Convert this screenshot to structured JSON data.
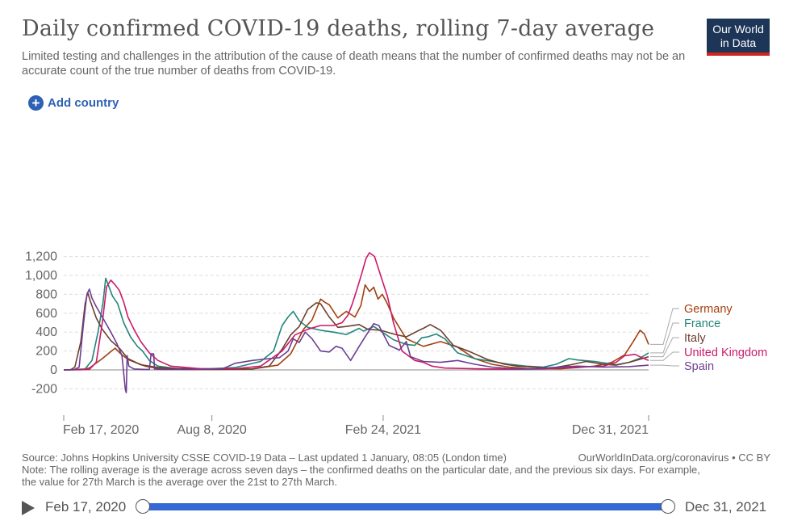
{
  "header": {
    "title": "Daily confirmed COVID-19 deaths, rolling 7-day average",
    "subtitle": "Limited testing and challenges in the attribution of the cause of death means that the number of confirmed deaths may not be an accurate count of the true number of deaths from COVID-19.",
    "logo_line1": "Our World",
    "logo_line2": "in Data"
  },
  "controls": {
    "add_country": "Add country"
  },
  "colors": {
    "Germany": "#a2400f",
    "France": "#21867b",
    "Italy": "#6d3e30",
    "United Kingdom": "#cb1a6a",
    "Spain": "#6d3e91"
  },
  "chart_data": {
    "type": "line",
    "title": "Daily confirmed COVID-19 deaths, rolling 7-day average",
    "xlabel": "",
    "ylabel": "",
    "ylim": [
      -250,
      1300
    ],
    "yticks": [
      -200,
      0,
      200,
      400,
      600,
      800,
      1000,
      1200
    ],
    "ytick_labels": [
      "-200",
      "0",
      "200",
      "400",
      "600",
      "800",
      "1,000",
      "1,200"
    ],
    "x_start": "2020-02-17",
    "x_end": "2021-12-31",
    "xticks": [
      {
        "day": 0,
        "label": "Feb 17, 2020"
      },
      {
        "day": 173,
        "label": "Aug 8, 2020"
      },
      {
        "day": 373,
        "label": "Feb 24, 2021"
      },
      {
        "day": 683,
        "label": "Dec 31, 2021"
      }
    ],
    "series": [
      {
        "name": "Germany",
        "points": [
          [
            0,
            0
          ],
          [
            20,
            2
          ],
          [
            30,
            20
          ],
          [
            45,
            120
          ],
          [
            55,
            195
          ],
          [
            60,
            230
          ],
          [
            66,
            175
          ],
          [
            75,
            110
          ],
          [
            85,
            75
          ],
          [
            95,
            40
          ],
          [
            110,
            15
          ],
          [
            140,
            5
          ],
          [
            180,
            4
          ],
          [
            220,
            10
          ],
          [
            250,
            50
          ],
          [
            265,
            170
          ],
          [
            280,
            430
          ],
          [
            290,
            530
          ],
          [
            300,
            750
          ],
          [
            305,
            715
          ],
          [
            310,
            690
          ],
          [
            320,
            550
          ],
          [
            330,
            620
          ],
          [
            340,
            560
          ],
          [
            347,
            680
          ],
          [
            352,
            900
          ],
          [
            357,
            830
          ],
          [
            362,
            875
          ],
          [
            367,
            750
          ],
          [
            372,
            800
          ],
          [
            378,
            700
          ],
          [
            385,
            550
          ],
          [
            400,
            330
          ],
          [
            420,
            250
          ],
          [
            440,
            300
          ],
          [
            460,
            240
          ],
          [
            480,
            120
          ],
          [
            500,
            60
          ],
          [
            520,
            30
          ],
          [
            540,
            15
          ],
          [
            560,
            13
          ],
          [
            580,
            12
          ],
          [
            600,
            25
          ],
          [
            620,
            40
          ],
          [
            640,
            80
          ],
          [
            655,
            160
          ],
          [
            665,
            300
          ],
          [
            673,
            420
          ],
          [
            678,
            380
          ],
          [
            683,
            270
          ]
        ]
      },
      {
        "name": "France",
        "points": [
          [
            0,
            0
          ],
          [
            25,
            10
          ],
          [
            33,
            100
          ],
          [
            40,
            400
          ],
          [
            46,
            720
          ],
          [
            49,
            970
          ],
          [
            52,
            900
          ],
          [
            57,
            780
          ],
          [
            63,
            700
          ],
          [
            70,
            500
          ],
          [
            78,
            350
          ],
          [
            86,
            250
          ],
          [
            92,
            200
          ],
          [
            100,
            100
          ],
          [
            110,
            40
          ],
          [
            130,
            15
          ],
          [
            170,
            12
          ],
          [
            200,
            25
          ],
          [
            230,
            90
          ],
          [
            245,
            200
          ],
          [
            255,
            470
          ],
          [
            262,
            560
          ],
          [
            268,
            620
          ],
          [
            275,
            520
          ],
          [
            285,
            450
          ],
          [
            300,
            420
          ],
          [
            315,
            400
          ],
          [
            330,
            375
          ],
          [
            345,
            440
          ],
          [
            350,
            410
          ],
          [
            362,
            460
          ],
          [
            372,
            400
          ],
          [
            385,
            320
          ],
          [
            400,
            270
          ],
          [
            410,
            260
          ],
          [
            418,
            340
          ],
          [
            425,
            350
          ],
          [
            435,
            380
          ],
          [
            445,
            330
          ],
          [
            460,
            180
          ],
          [
            480,
            120
          ],
          [
            500,
            90
          ],
          [
            520,
            60
          ],
          [
            540,
            40
          ],
          [
            560,
            30
          ],
          [
            575,
            60
          ],
          [
            590,
            120
          ],
          [
            600,
            105
          ],
          [
            620,
            90
          ],
          [
            645,
            55
          ],
          [
            660,
            80
          ],
          [
            672,
            120
          ],
          [
            683,
            180
          ]
        ]
      },
      {
        "name": "Italy",
        "points": [
          [
            0,
            0
          ],
          [
            8,
            2
          ],
          [
            13,
            30
          ],
          [
            20,
            300
          ],
          [
            25,
            700
          ],
          [
            28,
            820
          ],
          [
            31,
            730
          ],
          [
            38,
            550
          ],
          [
            45,
            430
          ],
          [
            55,
            310
          ],
          [
            65,
            230
          ],
          [
            75,
            120
          ],
          [
            90,
            55
          ],
          [
            110,
            25
          ],
          [
            140,
            12
          ],
          [
            180,
            8
          ],
          [
            220,
            10
          ],
          [
            240,
            40
          ],
          [
            255,
            220
          ],
          [
            265,
            370
          ],
          [
            275,
            460
          ],
          [
            285,
            640
          ],
          [
            295,
            710
          ],
          [
            300,
            700
          ],
          [
            310,
            560
          ],
          [
            320,
            450
          ],
          [
            330,
            460
          ],
          [
            345,
            480
          ],
          [
            355,
            430
          ],
          [
            370,
            420
          ],
          [
            385,
            380
          ],
          [
            400,
            350
          ],
          [
            415,
            420
          ],
          [
            420,
            440
          ],
          [
            428,
            480
          ],
          [
            440,
            420
          ],
          [
            455,
            260
          ],
          [
            475,
            190
          ],
          [
            495,
            110
          ],
          [
            515,
            60
          ],
          [
            530,
            40
          ],
          [
            550,
            30
          ],
          [
            570,
            20
          ],
          [
            590,
            50
          ],
          [
            610,
            90
          ],
          [
            630,
            60
          ],
          [
            645,
            50
          ],
          [
            660,
            80
          ],
          [
            672,
            110
          ],
          [
            683,
            140
          ]
        ]
      },
      {
        "name": "United Kingdom",
        "points": [
          [
            0,
            0
          ],
          [
            30,
            5
          ],
          [
            38,
            80
          ],
          [
            45,
            500
          ],
          [
            50,
            880
          ],
          [
            55,
            950
          ],
          [
            60,
            900
          ],
          [
            65,
            840
          ],
          [
            70,
            720
          ],
          [
            75,
            560
          ],
          [
            82,
            430
          ],
          [
            90,
            300
          ],
          [
            100,
            180
          ],
          [
            110,
            100
          ],
          [
            125,
            40
          ],
          [
            160,
            12
          ],
          [
            200,
            12
          ],
          [
            230,
            40
          ],
          [
            255,
            200
          ],
          [
            270,
            370
          ],
          [
            285,
            430
          ],
          [
            300,
            470
          ],
          [
            315,
            470
          ],
          [
            325,
            500
          ],
          [
            332,
            580
          ],
          [
            337,
            700
          ],
          [
            342,
            840
          ],
          [
            348,
            1020
          ],
          [
            353,
            1180
          ],
          [
            357,
            1240
          ],
          [
            363,
            1200
          ],
          [
            370,
            1000
          ],
          [
            378,
            780
          ],
          [
            385,
            500
          ],
          [
            395,
            200
          ],
          [
            410,
            100
          ],
          [
            420,
            80
          ],
          [
            430,
            40
          ],
          [
            445,
            20
          ],
          [
            480,
            12
          ],
          [
            520,
            8
          ],
          [
            560,
            12
          ],
          [
            600,
            30
          ],
          [
            630,
            40
          ],
          [
            645,
            80
          ],
          [
            655,
            150
          ],
          [
            667,
            165
          ],
          [
            675,
            130
          ],
          [
            683,
            100
          ]
        ]
      },
      {
        "name": "Spain",
        "points": [
          [
            0,
            0
          ],
          [
            12,
            2
          ],
          [
            18,
            30
          ],
          [
            23,
            480
          ],
          [
            27,
            800
          ],
          [
            30,
            855
          ],
          [
            33,
            760
          ],
          [
            38,
            670
          ],
          [
            45,
            560
          ],
          [
            55,
            400
          ],
          [
            62,
            280
          ],
          [
            68,
            150
          ],
          [
            72,
            -210
          ],
          [
            73,
            -240
          ],
          [
            74,
            150
          ],
          [
            76,
            40
          ],
          [
            82,
            10
          ],
          [
            95,
            5
          ],
          [
            100,
            5
          ],
          [
            102,
            170
          ],
          [
            105,
            170
          ],
          [
            106,
            10
          ],
          [
            115,
            5
          ],
          [
            150,
            5
          ],
          [
            185,
            10
          ],
          [
            200,
            70
          ],
          [
            220,
            100
          ],
          [
            240,
            120
          ],
          [
            252,
            130
          ],
          [
            262,
            200
          ],
          [
            268,
            330
          ],
          [
            275,
            290
          ],
          [
            282,
            400
          ],
          [
            290,
            330
          ],
          [
            300,
            200
          ],
          [
            310,
            190
          ],
          [
            318,
            250
          ],
          [
            325,
            230
          ],
          [
            335,
            100
          ],
          [
            345,
            250
          ],
          [
            352,
            350
          ],
          [
            362,
            490
          ],
          [
            368,
            470
          ],
          [
            380,
            260
          ],
          [
            392,
            210
          ],
          [
            400,
            300
          ],
          [
            405,
            140
          ],
          [
            420,
            90
          ],
          [
            440,
            80
          ],
          [
            460,
            100
          ],
          [
            480,
            60
          ],
          [
            500,
            30
          ],
          [
            520,
            15
          ],
          [
            545,
            10
          ],
          [
            570,
            25
          ],
          [
            600,
            40
          ],
          [
            630,
            30
          ],
          [
            660,
            35
          ],
          [
            683,
            50
          ]
        ]
      }
    ],
    "legend": [
      "Germany",
      "France",
      "Italy",
      "United Kingdom",
      "Spain"
    ],
    "legend_position": "right",
    "grid": true
  },
  "footer": {
    "source": "Source: Johns Hopkins University CSSE COVID-19 Data – Last updated 1 January, 08:05 (London time)",
    "credit": "OurWorldInData.org/coronavirus • CC BY",
    "note_line1": "Note: The rolling average is the average across seven days – the confirmed deaths on the particular date, and the previous six days. For example,",
    "note_line2": "the value for 27th March is the average over the 21st to 27th March."
  },
  "timeline": {
    "start_label": "Feb 17, 2020",
    "end_label": "Dec 31, 2021",
    "start_fraction": 0,
    "end_fraction": 1
  }
}
